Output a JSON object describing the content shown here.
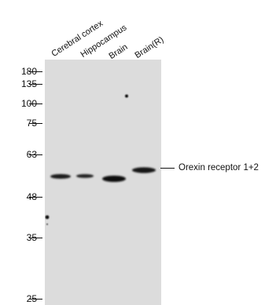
{
  "lanes": [
    "Cerebral cortex",
    "Hippocampus",
    "Brain",
    "Brain(R)"
  ],
  "markers": [
    "180",
    "135",
    "100",
    "75",
    "63",
    "48",
    "35",
    "25"
  ],
  "target_label": "Orexin receptor 1+2",
  "colors": {
    "membrane": "#dcdcdc",
    "band": "#1a1a1a",
    "text": "#111111"
  }
}
